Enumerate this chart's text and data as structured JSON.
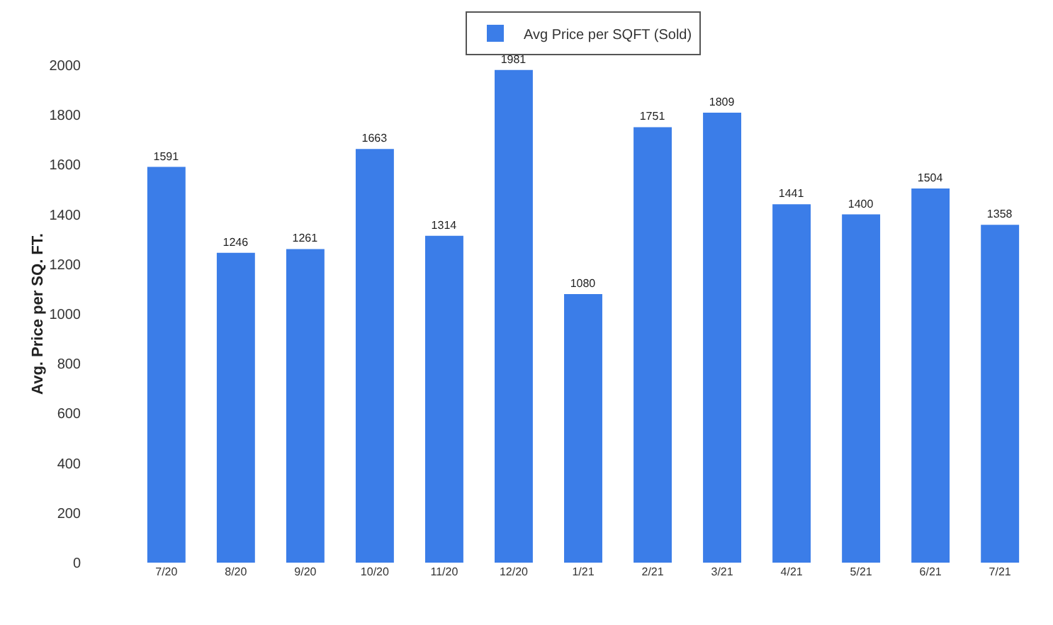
{
  "chart_data": {
    "type": "bar",
    "ylabel": "Avg. Price per SQ. FT.",
    "categories": [
      "7/20",
      "8/20",
      "9/20",
      "10/20",
      "11/20",
      "12/20",
      "1/21",
      "2/21",
      "3/21",
      "4/21",
      "5/21",
      "6/21",
      "7/21"
    ],
    "series": [
      {
        "name": "Avg Price per SQFT (Sold)",
        "color": "#3b7de8",
        "values": [
          1591,
          1246,
          1261,
          1663,
          1314,
          1981,
          1080,
          1751,
          1809,
          1441,
          1400,
          1504,
          1358
        ]
      }
    ],
    "ylim": [
      0,
      2000
    ],
    "yticks": [
      0,
      200,
      400,
      600,
      800,
      1000,
      1200,
      1400,
      1600,
      1800,
      2000
    ],
    "data_labels": true,
    "legend": "top",
    "grid": false
  }
}
